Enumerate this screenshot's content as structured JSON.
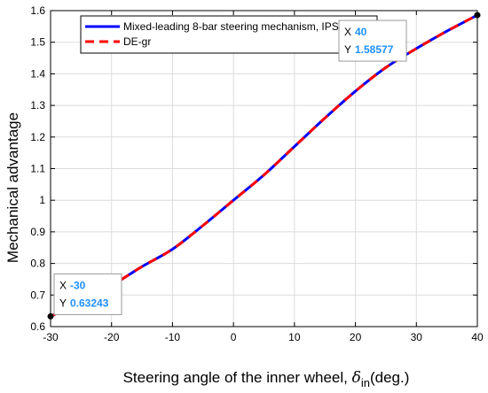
{
  "chart_data": {
    "type": "line",
    "xlabel_main": "Steering angle of the inner wheel, ",
    "xlabel_symbol": "δ",
    "xlabel_subscript": "in",
    "xlabel_unit": "(deg.)",
    "ylabel": "Mechanical advantage",
    "xlim": [
      -30,
      40
    ],
    "ylim": [
      0.6,
      1.6
    ],
    "xticks": [
      -30,
      -20,
      -10,
      0,
      10,
      20,
      30,
      40
    ],
    "yticks": [
      0.6,
      0.7,
      0.8,
      0.9,
      1,
      1.1,
      1.2,
      1.3,
      1.4,
      1.5,
      1.6
    ],
    "grid": true,
    "legend_position": "top-left",
    "series": [
      {
        "name": "Mixed-leading 8-bar steering mechanism, IPSO",
        "color": "#0000ff",
        "style": "solid",
        "x": [
          -30,
          -25,
          -20,
          -15,
          -10,
          -5,
          0,
          5,
          10,
          15,
          20,
          25,
          30,
          35,
          40
        ],
        "y": [
          0.63243,
          0.68,
          0.73,
          0.79,
          0.845,
          0.92,
          1.0,
          1.08,
          1.17,
          1.26,
          1.345,
          1.42,
          1.48,
          1.535,
          1.58577
        ]
      },
      {
        "name": "DE-gr",
        "color": "#ff0000",
        "style": "dashed",
        "x": [
          -30,
          -25,
          -20,
          -15,
          -10,
          -5,
          0,
          5,
          10,
          15,
          20,
          25,
          30,
          35,
          40
        ],
        "y": [
          0.63243,
          0.68,
          0.73,
          0.79,
          0.845,
          0.92,
          1.0,
          1.08,
          1.17,
          1.26,
          1.345,
          1.42,
          1.48,
          1.535,
          1.58577
        ]
      }
    ],
    "datatips": [
      {
        "x_label": "X",
        "y_label": "Y",
        "x": "40",
        "y": "1.58577",
        "x_value": 40,
        "y_value": 1.58577,
        "anchor": "left"
      },
      {
        "x_label": "X",
        "y_label": "Y",
        "x": "-30",
        "y": "0.63243",
        "x_value": -30,
        "y_value": 0.63243,
        "anchor": "right"
      }
    ],
    "datatip_value_color": "#1e90ff"
  }
}
